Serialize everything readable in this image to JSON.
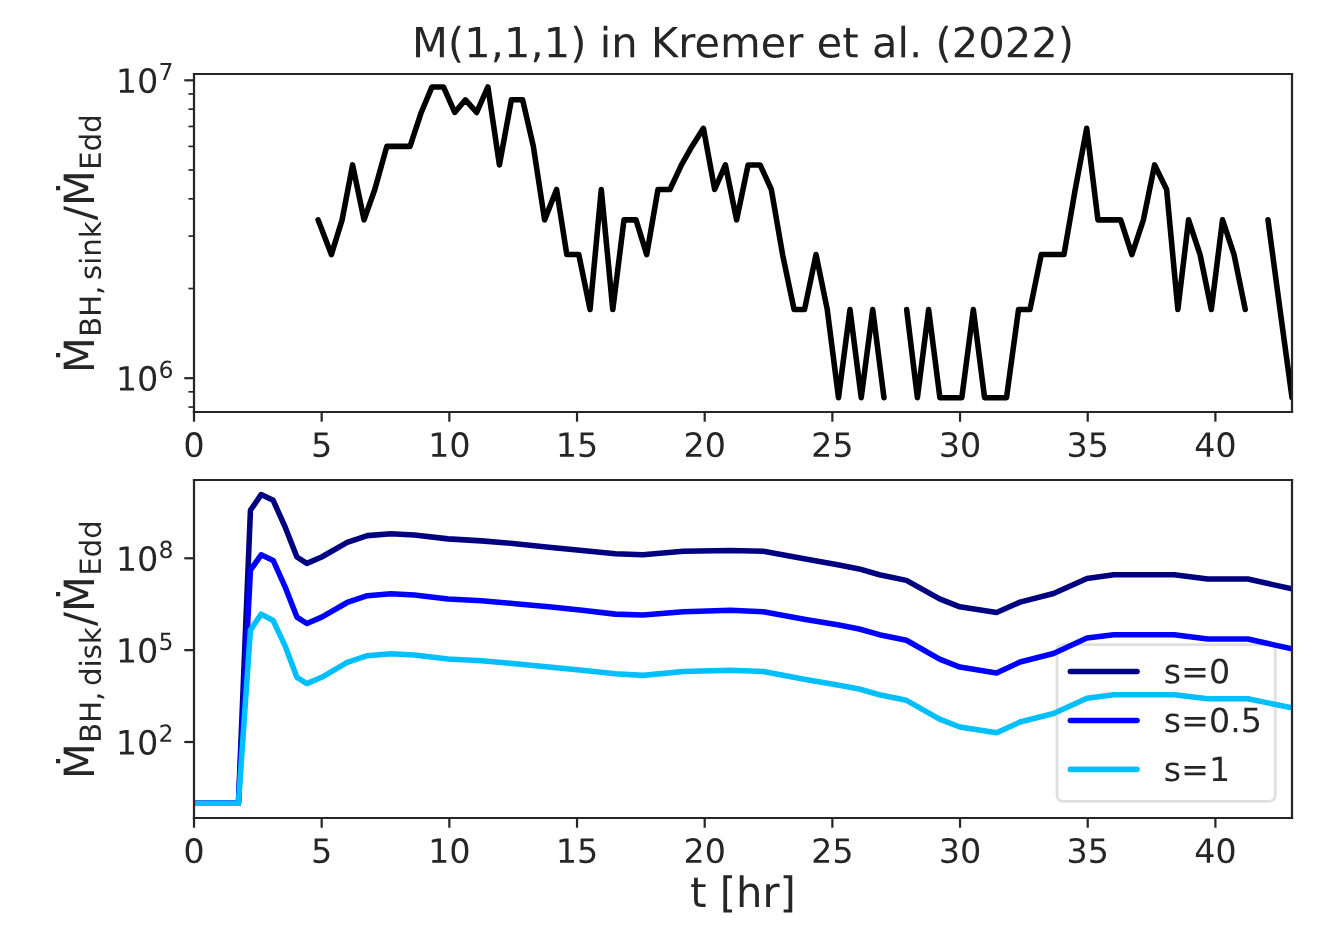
{
  "chart_data": [
    {
      "type": "line",
      "title": "M(1,1,1) in Kremer et al. (2022)",
      "ylabel": "Ṁ$_{BH,sink}$/Ṁ$_{Edd}$",
      "log": true,
      "x": [
        4.86,
        5.38,
        5.8,
        6.21,
        6.66,
        7.08,
        7.55,
        7.99,
        8.46,
        8.9,
        9.32,
        9.77,
        10.21,
        10.63,
        11.07,
        11.51,
        11.96,
        12.43,
        12.87,
        13.29,
        13.73,
        14.2,
        14.6,
        15.07,
        15.51,
        15.95,
        16.4,
        16.84,
        17.31,
        17.73,
        18.17,
        18.64,
        19.09,
        19.5,
        19.95,
        20.39,
        20.81,
        21.25,
        21.7,
        22.17,
        22.61,
        23.05,
        23.5,
        23.91,
        24.36,
        24.8,
        25.24,
        25.69,
        26.13,
        26.58,
        27.02,
        27.47,
        27.91,
        28.33,
        28.77,
        29.21,
        29.64,
        30.07,
        30.52,
        30.96,
        31.39,
        31.82,
        32.29,
        32.74,
        33.18,
        33.62,
        34.07,
        34.51,
        34.96,
        35.4,
        35.85,
        36.29,
        36.73,
        37.18,
        37.62,
        38.09,
        38.53,
        38.95,
        39.4,
        39.84,
        40.28,
        40.73,
        41.17,
        41.62,
        42.06,
        42.53,
        43.0
      ],
      "series": [
        {
          "color": "#000000",
          "values": [
            3400000.0,
            2600000.0,
            3400000.0,
            5200000.0,
            3400000.0,
            4300000.0,
            6000000.0,
            6000000.0,
            6000000.0,
            7800000.0,
            9500000.0,
            9500000.0,
            7800000.0,
            8600000.0,
            7800000.0,
            9500000.0,
            5200000.0,
            8600000.0,
            8600000.0,
            6000000.0,
            3400000.0,
            4300000.0,
            2600000.0,
            2600000.0,
            1700000.0,
            4300000.0,
            1700000.0,
            3400000.0,
            3400000.0,
            2600000.0,
            4300000.0,
            4300000.0,
            5200000.0,
            6000000.0,
            6900000.0,
            4300000.0,
            5200000.0,
            3400000.0,
            5200000.0,
            5200000.0,
            4300000.0,
            2600000.0,
            1700000.0,
            1700000.0,
            2600000.0,
            1700000.0,
            860000.0,
            1700000.0,
            860000.0,
            1700000.0,
            860000.0,
            null,
            1700000.0,
            860000.0,
            1700000.0,
            860000.0,
            860000.0,
            860000.0,
            1700000.0,
            860000.0,
            860000.0,
            860000.0,
            1700000.0,
            1700000.0,
            2600000.0,
            2600000.0,
            2600000.0,
            4300000.0,
            6900000.0,
            3400000.0,
            3400000.0,
            3400000.0,
            2600000.0,
            3400000.0,
            5200000.0,
            4300000.0,
            1700000.0,
            3400000.0,
            2600000.0,
            1700000.0,
            3400000.0,
            2600000.0,
            1700000.0,
            null,
            3400000.0,
            1700000.0,
            860000.0
          ]
        }
      ],
      "xlim": [
        0,
        43
      ],
      "xticks": [
        0,
        5,
        10,
        15,
        20,
        25,
        30,
        35,
        40
      ],
      "ylim": [
        770000.0,
        10500000.0
      ],
      "yticks": [
        {
          "value": 1000000,
          "label": "10$^{6}$"
        },
        {
          "value": 10000000,
          "label": "10$^{7}$"
        }
      ]
    },
    {
      "type": "line",
      "xlabel": "t [hr]",
      "ylabel": "Ṁ$_{BH,disk}$/Ṁ$_{Edd}$",
      "log": true,
      "legend": "bottom right",
      "x": [
        0,
        1.74,
        2.21,
        2.63,
        3.1,
        3.58,
        4.03,
        4.42,
        5.0,
        6.0,
        6.79,
        7.71,
        8.63,
        9.95,
        11.26,
        12.58,
        13.9,
        15.2,
        16.5,
        17.58,
        19.16,
        21.0,
        22.3,
        23.95,
        25.26,
        26.05,
        26.84,
        27.9,
        29.2,
        29.99,
        31.43,
        32.35,
        33.66,
        34.97,
        36.02,
        37.07,
        38.39,
        39.7,
        41.27,
        43.0
      ],
      "series": [
        {
          "name": "s=0",
          "color": "#000080",
          "values": [
            1,
            1,
            3700000000.0,
            12000000000.0,
            7800000000.0,
            1000000000.0,
            110000000.0,
            68000000.0,
            110000000.0,
            330000000.0,
            550000000.0,
            630000000.0,
            580000000.0,
            430000000.0,
            370000000.0,
            300000000.0,
            230000000.0,
            180000000.0,
            140000000.0,
            130000000.0,
            170000000.0,
            180000000.0,
            170000000.0,
            95000000.0,
            60000000.0,
            45000000.0,
            29000000.0,
            19000000.0,
            4700000.0,
            2600000.0,
            1700000.0,
            3700000.0,
            7100000.0,
            22000000.0,
            29000000.0,
            29000000.0,
            29000000.0,
            21000000.0,
            21000000.0,
            10000000.0
          ]
        },
        {
          "name": "s=0.5",
          "color": "#0000ff",
          "values": [
            1,
            1,
            41000000.0,
            130000000.0,
            85000000.0,
            11000000.0,
            1200000.0,
            740000.0,
            1200000.0,
            3600000.0,
            6000000.0,
            6900000.0,
            6300000.0,
            4700000.0,
            4100000.0,
            3300000.0,
            2600000.0,
            2000000.0,
            1500000.0,
            1400000.0,
            1800000.0,
            2000000.0,
            1800000.0,
            1000000.0,
            660000.0,
            490000.0,
            320000.0,
            210000.0,
            51000.0,
            28000.0,
            18000.0,
            41000.0,
            78000.0,
            250000.0,
            320000.0,
            320000.0,
            320000.0,
            230000.0,
            230000.0,
            110000.0
          ]
        },
        {
          "name": "s=1",
          "color": "#00bfff",
          "values": [
            1,
            1,
            450000.0,
            1500000.0,
            930000.0,
            130000.0,
            13000.0,
            8100.0,
            13000.0,
            40000.0,
            66000.0,
            76000.0,
            69000.0,
            51000.0,
            45000.0,
            36000.0,
            28000.0,
            22000.0,
            17000.0,
            15000.0,
            20000.0,
            22000.0,
            20000.0,
            11000.0,
            7200.0,
            5400.0,
            3500.0,
            2300.0,
            560,
            310,
            200,
            450,
            850,
            2700.0,
            3500.0,
            3500.0,
            3500.0,
            2600.0,
            2600.0,
            1300.0
          ]
        }
      ],
      "xlim": [
        0,
        43
      ],
      "xticks": [
        0,
        5,
        10,
        15,
        20,
        25,
        30,
        35,
        40
      ],
      "ylim": [
        0.33,
        36000000000.0
      ],
      "yticks": [
        {
          "value": 100,
          "label": "10$^{2}$"
        },
        {
          "value": 100000,
          "label": "10$^{5}$"
        },
        {
          "value": 100000000,
          "label": "10$^{8}$"
        }
      ]
    }
  ]
}
